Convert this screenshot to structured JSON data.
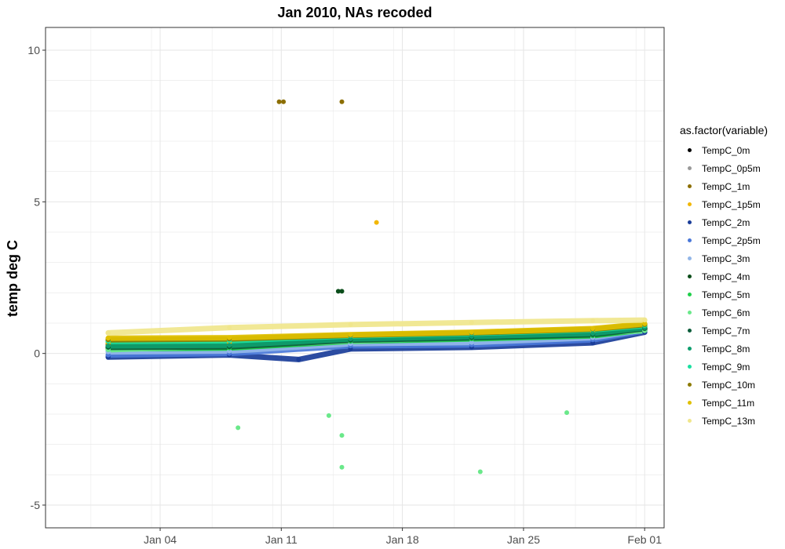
{
  "chart_data": {
    "type": "scatter",
    "title": "Jan 2010, NAs recoded",
    "xlabel": "",
    "ylabel": "temp deg C",
    "xlim": [
      "2009-12-28T09:00",
      "2010-02-02T03:00"
    ],
    "ylim": [
      -5.75,
      10.75
    ],
    "x_ticks": [
      {
        "date": "2010-01-04",
        "label": "Jan 04"
      },
      {
        "date": "2010-01-11",
        "label": "Jan 11"
      },
      {
        "date": "2010-01-18",
        "label": "Jan 18"
      },
      {
        "date": "2010-01-25",
        "label": "Jan 25"
      },
      {
        "date": "2010-02-01",
        "label": "Feb 01"
      }
    ],
    "y_ticks": [
      -5,
      0,
      5,
      10
    ],
    "grid": true,
    "legend": {
      "title": "as.factor(variable)",
      "position": "right"
    },
    "series": [
      {
        "name": "TempC_0m",
        "color": "#000000",
        "points": [
          [
            "2010-01-01",
            0.22
          ],
          [
            "2010-01-08",
            0.24
          ],
          [
            "2010-01-15",
            0.45
          ],
          [
            "2010-01-22",
            0.55
          ],
          [
            "2010-01-29",
            0.62
          ],
          [
            "2010-02-01",
            0.82
          ]
        ]
      },
      {
        "name": "TempC_0p5m",
        "color": "#999999",
        "points": [
          [
            "2010-01-01",
            0.25
          ],
          [
            "2010-01-08",
            0.26
          ],
          [
            "2010-01-15",
            0.48
          ],
          [
            "2010-01-22",
            0.57
          ],
          [
            "2010-01-29",
            0.64
          ],
          [
            "2010-02-01",
            0.83
          ]
        ]
      },
      {
        "name": "TempC_1m",
        "color": "#8c6e00",
        "points": [
          [
            "2010-01-01",
            0.3
          ],
          [
            "2010-01-08",
            0.32
          ],
          [
            "2010-01-10T21:00",
            8.3
          ],
          [
            "2010-01-11T03:00",
            8.3
          ],
          [
            "2010-01-14T12:00",
            8.3
          ],
          [
            "2010-01-15",
            0.5
          ],
          [
            "2010-01-22",
            0.6
          ],
          [
            "2010-01-29",
            0.68
          ],
          [
            "2010-02-01",
            0.88
          ]
        ]
      },
      {
        "name": "TempC_1p5m",
        "color": "#f2b705",
        "points": [
          [
            "2010-01-01",
            0.35
          ],
          [
            "2010-01-08",
            0.36
          ],
          [
            "2010-01-15",
            0.52
          ],
          [
            "2010-01-16T12:00",
            4.32
          ],
          [
            "2010-01-22",
            0.62
          ],
          [
            "2010-01-29",
            0.7
          ],
          [
            "2010-02-01",
            0.9
          ]
        ]
      },
      {
        "name": "TempC_2m",
        "color": "#1a3d99",
        "points": [
          [
            "2010-01-01",
            -0.12
          ],
          [
            "2010-01-08",
            -0.05
          ],
          [
            "2010-01-12",
            -0.2
          ],
          [
            "2010-01-15",
            0.15
          ],
          [
            "2010-01-22",
            0.2
          ],
          [
            "2010-01-29",
            0.35
          ],
          [
            "2010-02-01",
            0.7
          ]
        ]
      },
      {
        "name": "TempC_2p5m",
        "color": "#4a78d9",
        "points": [
          [
            "2010-01-01",
            -0.05
          ],
          [
            "2010-01-08",
            0.0
          ],
          [
            "2010-01-15",
            0.25
          ],
          [
            "2010-01-22",
            0.28
          ],
          [
            "2010-01-29",
            0.45
          ],
          [
            "2010-02-01",
            0.75
          ]
        ]
      },
      {
        "name": "TempC_3m",
        "color": "#92b6e8",
        "points": [
          [
            "2010-01-01",
            0.05
          ],
          [
            "2010-01-08",
            0.08
          ],
          [
            "2010-01-15",
            0.32
          ],
          [
            "2010-01-22",
            0.36
          ],
          [
            "2010-01-29",
            0.52
          ],
          [
            "2010-02-01",
            0.78
          ]
        ]
      },
      {
        "name": "TempC_4m",
        "color": "#0b4d1a",
        "points": [
          [
            "2010-01-01",
            0.18
          ],
          [
            "2010-01-08",
            0.2
          ],
          [
            "2010-01-14T07:00",
            2.05
          ],
          [
            "2010-01-14T12:00",
            2.05
          ],
          [
            "2010-01-15",
            0.42
          ],
          [
            "2010-01-22",
            0.5
          ],
          [
            "2010-01-29",
            0.6
          ],
          [
            "2010-02-01",
            0.8
          ]
        ]
      },
      {
        "name": "TempC_5m",
        "color": "#1fcf4a",
        "points": [
          [
            "2010-01-01",
            0.15
          ],
          [
            "2010-01-08",
            0.18
          ],
          [
            "2010-01-15",
            0.4
          ],
          [
            "2010-01-22",
            0.48
          ],
          [
            "2010-01-29",
            0.58
          ],
          [
            "2010-02-01",
            0.78
          ]
        ]
      },
      {
        "name": "TempC_6m",
        "color": "#6ae88a",
        "points": [
          [
            "2010-01-01",
            0.12
          ],
          [
            "2010-01-08T12:00",
            -2.45
          ],
          [
            "2010-01-13T18:00",
            -2.05
          ],
          [
            "2010-01-14T12:00",
            -2.7
          ],
          [
            "2010-01-14T12:00",
            -3.75
          ],
          [
            "2010-01-22T12:00",
            -3.9
          ],
          [
            "2010-01-27T12:00",
            -1.95
          ],
          [
            "2010-02-01",
            0.75
          ]
        ]
      },
      {
        "name": "TempC_7m",
        "color": "#0a5c3a",
        "points": [
          [
            "2010-01-01",
            0.2
          ],
          [
            "2010-01-08",
            0.22
          ],
          [
            "2010-01-15",
            0.44
          ],
          [
            "2010-01-22",
            0.52
          ],
          [
            "2010-01-29",
            0.62
          ],
          [
            "2010-02-01",
            0.82
          ]
        ]
      },
      {
        "name": "TempC_8m",
        "color": "#0e9e6e",
        "points": [
          [
            "2010-01-01",
            0.25
          ],
          [
            "2010-01-08",
            0.27
          ],
          [
            "2010-01-15",
            0.48
          ],
          [
            "2010-01-22",
            0.56
          ],
          [
            "2010-01-29",
            0.66
          ],
          [
            "2010-02-01",
            0.85
          ]
        ]
      },
      {
        "name": "TempC_9m",
        "color": "#19e0a0",
        "points": [
          [
            "2010-01-01",
            0.4
          ],
          [
            "2010-01-08",
            0.42
          ],
          [
            "2010-01-15",
            0.58
          ],
          [
            "2010-01-22",
            0.66
          ],
          [
            "2010-01-29",
            0.78
          ],
          [
            "2010-02-01",
            0.92
          ]
        ]
      },
      {
        "name": "TempC_10m",
        "color": "#8c7a00",
        "points": [
          [
            "2010-01-01",
            0.45
          ],
          [
            "2010-01-08",
            0.48
          ],
          [
            "2010-01-15",
            0.6
          ],
          [
            "2010-01-22",
            0.68
          ],
          [
            "2010-01-29",
            0.8
          ],
          [
            "2010-02-01",
            0.95
          ]
        ]
      },
      {
        "name": "TempC_11m",
        "color": "#e0c000",
        "points": [
          [
            "2010-01-01",
            0.5
          ],
          [
            "2010-01-08",
            0.52
          ],
          [
            "2010-01-15",
            0.62
          ],
          [
            "2010-01-22",
            0.7
          ],
          [
            "2010-01-29",
            0.82
          ],
          [
            "2010-02-01",
            0.98
          ]
        ]
      },
      {
        "name": "TempC_13m",
        "color": "#f0e68c",
        "points": [
          [
            "2010-01-01",
            0.68
          ],
          [
            "2010-01-08",
            0.85
          ],
          [
            "2010-01-15",
            0.95
          ],
          [
            "2010-01-22",
            1.02
          ],
          [
            "2010-01-29",
            1.08
          ],
          [
            "2010-02-01",
            1.1
          ]
        ]
      }
    ]
  }
}
